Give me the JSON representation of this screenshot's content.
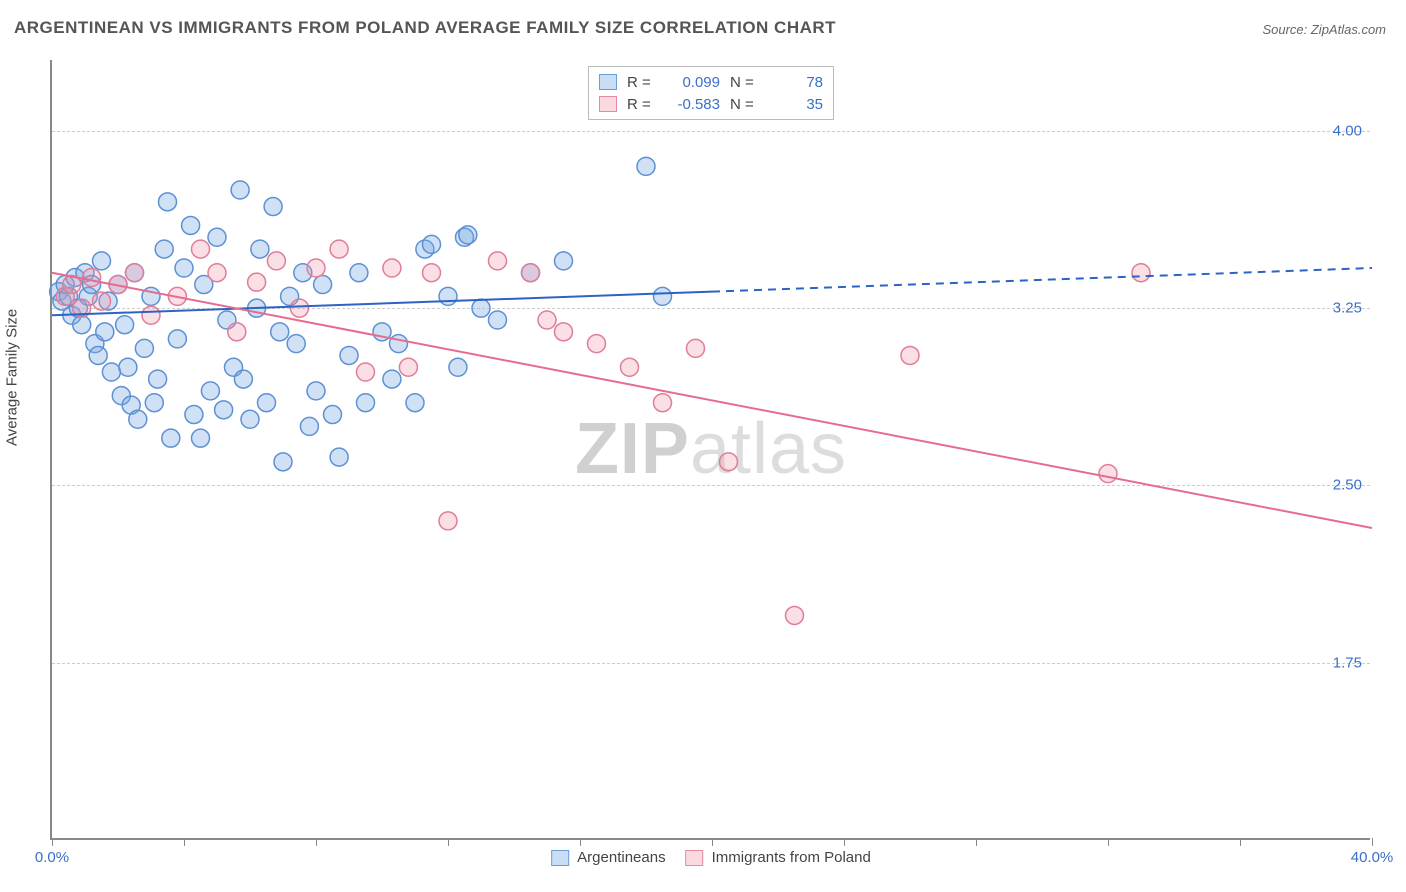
{
  "title": "ARGENTINEAN VS IMMIGRANTS FROM POLAND AVERAGE FAMILY SIZE CORRELATION CHART",
  "source": "Source: ZipAtlas.com",
  "ylabel": "Average Family Size",
  "watermark_bold": "ZIP",
  "watermark_light": "atlas",
  "xaxis": {
    "min": 0,
    "max": 40,
    "ticks": [
      0,
      4,
      8,
      12,
      16,
      20,
      24,
      28,
      32,
      36,
      40
    ],
    "tick_labels_shown": {
      "0": "0.0%",
      "40": "40.0%"
    }
  },
  "yaxis": {
    "min": 1.0,
    "max": 4.3,
    "gridlines": [
      1.75,
      2.5,
      3.25,
      4.0
    ],
    "tick_labels": {
      "1.75": "1.75",
      "2.50": "2.50",
      "3.25": "3.25",
      "4.00": "4.00"
    }
  },
  "colors": {
    "blue_fill": "rgba(120,170,230,0.35)",
    "blue_stroke": "#5d91d4",
    "pink_fill": "rgba(240,150,170,0.30)",
    "pink_stroke": "#e07d98",
    "blue_line": "#2d63c4",
    "pink_line": "#e76b8e",
    "tick_label": "#3b6fc9",
    "grid": "#cccccc"
  },
  "marker_radius": 9,
  "marker_stroke_width": 1.5,
  "line_width": 2,
  "series": {
    "blue": {
      "label": "Argentineans",
      "R": "0.099",
      "N": "78",
      "trend": {
        "x1": 0,
        "y1": 3.22,
        "x2_solid": 20,
        "y2_solid": 3.32,
        "x2_dash": 40,
        "y2_dash": 3.42
      },
      "points": [
        [
          0.2,
          3.32
        ],
        [
          0.3,
          3.28
        ],
        [
          0.4,
          3.35
        ],
        [
          0.5,
          3.3
        ],
        [
          0.6,
          3.22
        ],
        [
          0.7,
          3.38
        ],
        [
          0.8,
          3.25
        ],
        [
          0.9,
          3.18
        ],
        [
          1.0,
          3.4
        ],
        [
          1.1,
          3.3
        ],
        [
          1.2,
          3.35
        ],
        [
          1.3,
          3.1
        ],
        [
          1.4,
          3.05
        ],
        [
          1.5,
          3.45
        ],
        [
          1.6,
          3.15
        ],
        [
          1.7,
          3.28
        ],
        [
          1.8,
          2.98
        ],
        [
          2.0,
          3.35
        ],
        [
          2.1,
          2.88
        ],
        [
          2.2,
          3.18
        ],
        [
          2.3,
          3.0
        ],
        [
          2.4,
          2.84
        ],
        [
          2.5,
          3.4
        ],
        [
          2.6,
          2.78
        ],
        [
          2.8,
          3.08
        ],
        [
          3.0,
          3.3
        ],
        [
          3.1,
          2.85
        ],
        [
          3.2,
          2.95
        ],
        [
          3.4,
          3.5
        ],
        [
          3.5,
          3.7
        ],
        [
          3.6,
          2.7
        ],
        [
          3.8,
          3.12
        ],
        [
          4.0,
          3.42
        ],
        [
          4.2,
          3.6
        ],
        [
          4.3,
          2.8
        ],
        [
          4.5,
          2.7
        ],
        [
          4.6,
          3.35
        ],
        [
          4.8,
          2.9
        ],
        [
          5.0,
          3.55
        ],
        [
          5.2,
          2.82
        ],
        [
          5.3,
          3.2
        ],
        [
          5.5,
          3.0
        ],
        [
          5.7,
          3.75
        ],
        [
          5.8,
          2.95
        ],
        [
          6.0,
          2.78
        ],
        [
          6.2,
          3.25
        ],
        [
          6.3,
          3.5
        ],
        [
          6.5,
          2.85
        ],
        [
          6.7,
          3.68
        ],
        [
          6.9,
          3.15
        ],
        [
          7.0,
          2.6
        ],
        [
          7.2,
          3.3
        ],
        [
          7.4,
          3.1
        ],
        [
          7.6,
          3.4
        ],
        [
          7.8,
          2.75
        ],
        [
          8.0,
          2.9
        ],
        [
          8.2,
          3.35
        ],
        [
          8.5,
          2.8
        ],
        [
          8.7,
          2.62
        ],
        [
          9.0,
          3.05
        ],
        [
          9.3,
          3.4
        ],
        [
          9.5,
          2.85
        ],
        [
          10.0,
          3.15
        ],
        [
          10.3,
          2.95
        ],
        [
          10.5,
          3.1
        ],
        [
          11.0,
          2.85
        ],
        [
          11.3,
          3.5
        ],
        [
          11.5,
          3.52
        ],
        [
          12.0,
          3.3
        ],
        [
          12.3,
          3.0
        ],
        [
          12.5,
          3.55
        ],
        [
          12.6,
          3.56
        ],
        [
          13.0,
          3.25
        ],
        [
          13.5,
          3.2
        ],
        [
          14.5,
          3.4
        ],
        [
          15.5,
          3.45
        ],
        [
          18.0,
          3.85
        ],
        [
          18.5,
          3.3
        ]
      ]
    },
    "pink": {
      "label": "Immigrants from Poland",
      "R": "-0.583",
      "N": "35",
      "trend": {
        "x1": 0,
        "y1": 3.4,
        "x2": 40,
        "y2": 2.32
      },
      "points": [
        [
          0.4,
          3.3
        ],
        [
          0.6,
          3.35
        ],
        [
          0.9,
          3.25
        ],
        [
          1.2,
          3.38
        ],
        [
          1.5,
          3.28
        ],
        [
          2.0,
          3.35
        ],
        [
          2.5,
          3.4
        ],
        [
          3.0,
          3.22
        ],
        [
          3.8,
          3.3
        ],
        [
          4.5,
          3.5
        ],
        [
          5.0,
          3.4
        ],
        [
          5.6,
          3.15
        ],
        [
          6.2,
          3.36
        ],
        [
          6.8,
          3.45
        ],
        [
          7.5,
          3.25
        ],
        [
          8.0,
          3.42
        ],
        [
          8.7,
          3.5
        ],
        [
          9.5,
          2.98
        ],
        [
          10.3,
          3.42
        ],
        [
          10.8,
          3.0
        ],
        [
          11.5,
          3.4
        ],
        [
          12.0,
          2.35
        ],
        [
          13.5,
          3.45
        ],
        [
          14.5,
          3.4
        ],
        [
          15.0,
          3.2
        ],
        [
          15.5,
          3.15
        ],
        [
          16.5,
          3.1
        ],
        [
          17.5,
          3.0
        ],
        [
          18.5,
          2.85
        ],
        [
          19.5,
          3.08
        ],
        [
          20.5,
          2.6
        ],
        [
          22.5,
          1.95
        ],
        [
          26.0,
          3.05
        ],
        [
          32.0,
          2.55
        ],
        [
          33.0,
          3.4
        ]
      ]
    }
  }
}
